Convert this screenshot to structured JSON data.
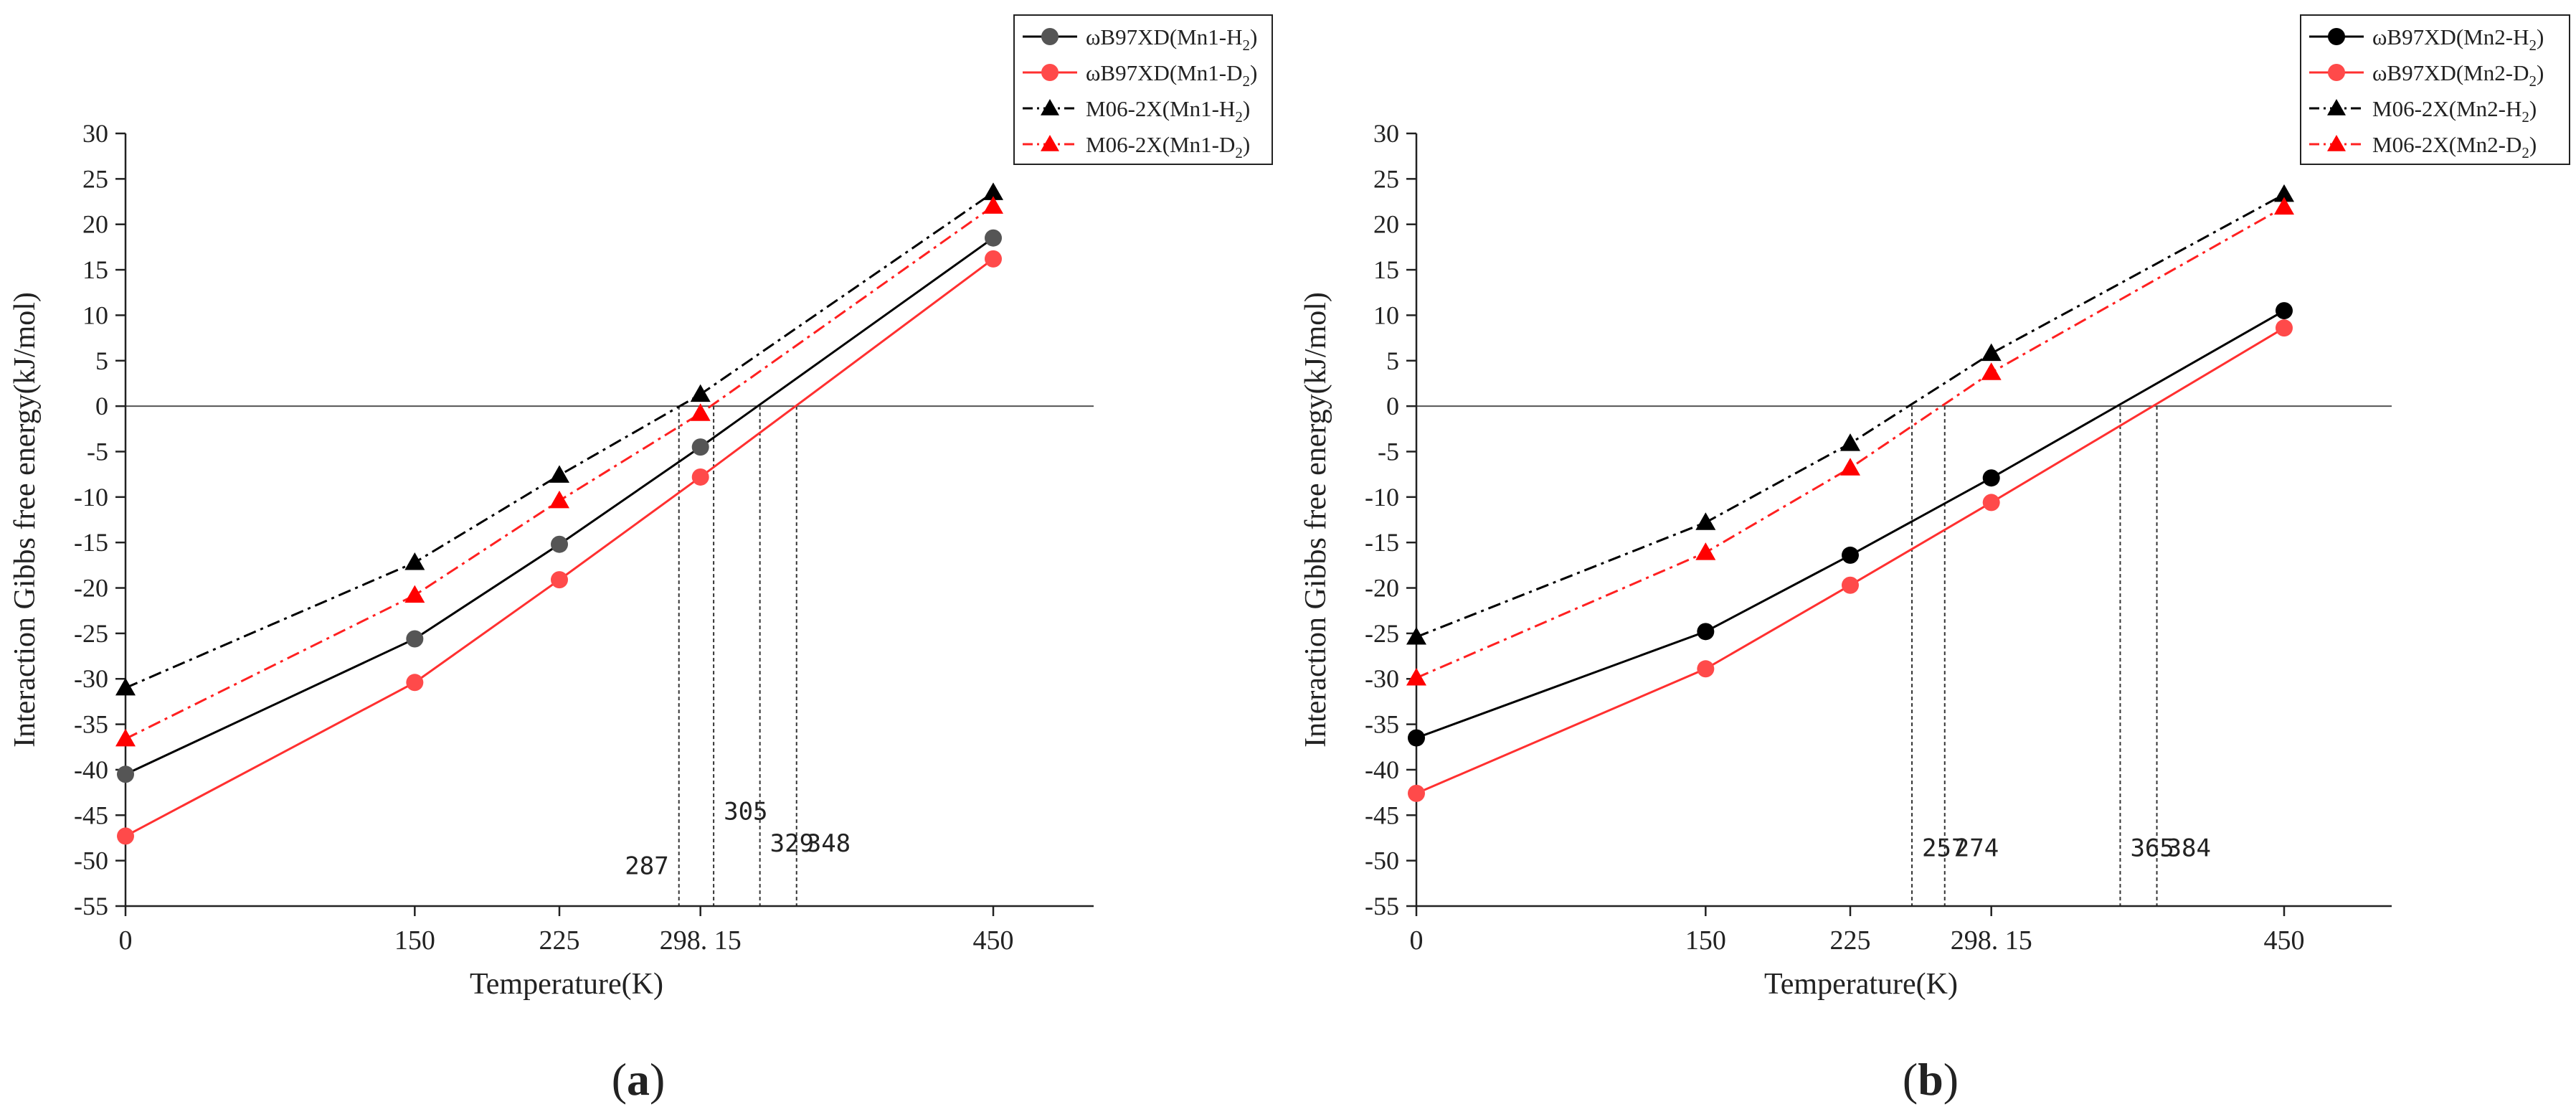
{
  "chart_data": [
    {
      "panel_label": "a",
      "type": "line",
      "xlabel": "Temperature(K)",
      "ylabel": "Interaction Gibbs free energy(kJ/mol)",
      "x": [
        0,
        150,
        225,
        298.15,
        450
      ],
      "xticks": [
        0,
        150,
        225,
        298.15,
        450
      ],
      "xtick_labels": [
        "0",
        "150",
        "225",
        "298. 15",
        "450"
      ],
      "xlim": [
        0,
        505
      ],
      "ylim": [
        -55,
        30
      ],
      "yticks": [
        30,
        25,
        20,
        15,
        10,
        5,
        0,
        -5,
        -10,
        -15,
        -20,
        -25,
        -30,
        -35,
        -40,
        -45,
        -50,
        -55
      ],
      "ytick_labels": [
        "30",
        "25",
        "20",
        "15",
        "10",
        "5",
        "0",
        "-5",
        "-10",
        "-15",
        "-20",
        "-25",
        "-30",
        "-35",
        "-40",
        "-45",
        "-50",
        "-55"
      ],
      "zero_line": true,
      "legend_position": "top-right",
      "series": [
        {
          "name": "ωB97XD(Mn1-H",
          "sub": "2",
          "close": ")",
          "color": "#000000",
          "marker_color": "#555555",
          "marker": "circle",
          "dash": "solid",
          "values": [
            -40.5,
            -25.6,
            -15.2,
            -4.5,
            18.5
          ]
        },
        {
          "name": "ωB97XD(Mn1-D",
          "sub": "2",
          "close": ")",
          "color": "#ff3030",
          "marker_color": "#ff4a4a",
          "marker": "circle",
          "dash": "solid",
          "values": [
            -47.3,
            -30.4,
            -19.1,
            -7.8,
            16.2
          ]
        },
        {
          "name": "M06-2X(Mn1-H",
          "sub": "2",
          "close": ")",
          "color": "#000000",
          "marker_color": "#000000",
          "marker": "triangle",
          "dash": "dashdot",
          "values": [
            -31.0,
            -17.2,
            -7.6,
            1.3,
            23.5
          ]
        },
        {
          "name": "M06-2X(Mn1-D",
          "sub": "2",
          "close": ")",
          "color": "#ff2020",
          "marker_color": "#ff0000",
          "marker": "triangle",
          "dash": "dashdot",
          "values": [
            -36.6,
            -20.8,
            -10.4,
            -0.8,
            22.0
          ]
        }
      ],
      "crossings": [
        {
          "x": 287,
          "label": "287",
          "label_y": -51.5
        },
        {
          "x": 305,
          "label": "305",
          "label_y": -45.5
        },
        {
          "x": 329,
          "label": "329",
          "label_y": -49.0
        },
        {
          "x": 348,
          "label": "348",
          "label_y": -49.0
        }
      ]
    },
    {
      "panel_label": "b",
      "type": "line",
      "xlabel": "Temperature(K)",
      "ylabel": "Interaction Gibbs free energy(kJ/mol)",
      "x": [
        0,
        150,
        225,
        298.15,
        450
      ],
      "xticks": [
        0,
        150,
        225,
        298.15,
        450
      ],
      "xtick_labels": [
        "0",
        "150",
        "225",
        "298. 15",
        "450"
      ],
      "xlim": [
        0,
        505
      ],
      "ylim": [
        -55,
        30
      ],
      "yticks": [
        30,
        25,
        20,
        15,
        10,
        5,
        0,
        -5,
        -10,
        -15,
        -20,
        -25,
        -30,
        -35,
        -40,
        -45,
        -50,
        -55
      ],
      "ytick_labels": [
        "30",
        "25",
        "20",
        "15",
        "10",
        "5",
        "0",
        "-5",
        "-10",
        "-15",
        "-20",
        "-25",
        "-30",
        "-35",
        "-40",
        "-45",
        "-50",
        "-55"
      ],
      "zero_line": true,
      "legend_position": "top-right",
      "series": [
        {
          "name": "ωB97XD(Mn2-H",
          "sub": "2",
          "close": ")",
          "color": "#000000",
          "marker_color": "#000000",
          "marker": "circle",
          "dash": "solid",
          "values": [
            -36.5,
            -24.8,
            -16.4,
            -7.9,
            10.5
          ]
        },
        {
          "name": "ωB97XD(Mn2-D",
          "sub": "2",
          "close": ")",
          "color": "#ff3030",
          "marker_color": "#ff4a4a",
          "marker": "circle",
          "dash": "solid",
          "values": [
            -42.6,
            -28.9,
            -19.7,
            -10.6,
            8.6
          ]
        },
        {
          "name": "M06-2X(Mn2-H",
          "sub": "2",
          "close": ")",
          "color": "#000000",
          "marker_color": "#000000",
          "marker": "triangle",
          "dash": "dashdot",
          "values": [
            -25.4,
            -12.8,
            -4.1,
            5.8,
            23.3
          ]
        },
        {
          "name": "M06-2X(Mn2-D",
          "sub": "2",
          "close": ")",
          "color": "#ff2020",
          "marker_color": "#ff0000",
          "marker": "triangle",
          "dash": "dashdot",
          "values": [
            -29.9,
            -16.1,
            -6.8,
            3.7,
            21.9
          ]
        }
      ],
      "crossings": [
        {
          "x": 257,
          "label": "257",
          "label_y": -49.5
        },
        {
          "x": 274,
          "label": "274",
          "label_y": -49.5
        },
        {
          "x": 365,
          "label": "365",
          "label_y": -49.5
        },
        {
          "x": 384,
          "label": "384",
          "label_y": -49.5
        }
      ]
    }
  ]
}
